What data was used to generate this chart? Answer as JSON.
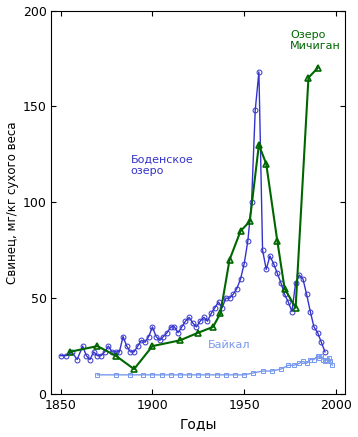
{
  "xlabel": "Годы",
  "ylabel": "Свинец, мг/кг сухого веса",
  "xlim": [
    1845,
    2005
  ],
  "ylim": [
    0,
    200
  ],
  "xticks": [
    1850,
    1900,
    1950,
    2000
  ],
  "yticks": [
    0,
    50,
    100,
    150,
    200
  ],
  "michigan_color": "#3333cc",
  "boden_color": "#006600",
  "baikal_color": "#7799ee",
  "label_color_blue": "#3333cc",
  "michigan_label": "Озеро\nМичиган",
  "boden_label": "Боденское\nозеро",
  "baikal_label": "Байкал",
  "michigan_x": [
    1850,
    1853,
    1856,
    1859,
    1862,
    1864,
    1866,
    1868,
    1870,
    1872,
    1874,
    1876,
    1878,
    1880,
    1882,
    1884,
    1886,
    1888,
    1890,
    1892,
    1894,
    1896,
    1898,
    1900,
    1902,
    1904,
    1906,
    1908,
    1910,
    1912,
    1914,
    1916,
    1918,
    1920,
    1922,
    1924,
    1926,
    1928,
    1930,
    1932,
    1934,
    1936,
    1938,
    1940,
    1942,
    1944,
    1946,
    1948,
    1950,
    1952,
    1954,
    1956,
    1958,
    1960,
    1962,
    1964,
    1966,
    1968,
    1970,
    1972,
    1974,
    1976,
    1978,
    1980,
    1982,
    1984,
    1986,
    1988,
    1990,
    1992,
    1994
  ],
  "michigan_y": [
    20,
    20,
    22,
    18,
    25,
    20,
    18,
    22,
    20,
    20,
    22,
    25,
    22,
    22,
    22,
    30,
    25,
    22,
    22,
    25,
    28,
    27,
    30,
    35,
    30,
    28,
    30,
    32,
    35,
    35,
    32,
    35,
    38,
    40,
    37,
    35,
    38,
    40,
    38,
    42,
    45,
    48,
    45,
    50,
    50,
    52,
    55,
    60,
    68,
    80,
    100,
    148,
    168,
    75,
    65,
    72,
    68,
    63,
    58,
    52,
    48,
    43,
    58,
    62,
    60,
    52,
    43,
    35,
    32,
    27,
    22
  ],
  "boden_x": [
    1855,
    1870,
    1880,
    1890,
    1900,
    1915,
    1925,
    1933,
    1937,
    1942,
    1948,
    1953,
    1958,
    1962,
    1968,
    1972,
    1978,
    1985,
    1990
  ],
  "boden_y": [
    22,
    25,
    20,
    13,
    25,
    28,
    32,
    35,
    42,
    70,
    85,
    90,
    130,
    120,
    80,
    55,
    45,
    165,
    170
  ],
  "baikal_x": [
    1870,
    1880,
    1888,
    1895,
    1900,
    1905,
    1910,
    1915,
    1920,
    1925,
    1930,
    1935,
    1940,
    1945,
    1950,
    1955,
    1960,
    1965,
    1970,
    1974,
    1977,
    1980,
    1982,
    1984,
    1986,
    1988,
    1990,
    1991,
    1992,
    1993,
    1994,
    1995,
    1996,
    1997,
    1998
  ],
  "baikal_y": [
    10,
    10,
    10,
    10,
    10,
    10,
    10,
    10,
    10,
    10,
    10,
    10,
    10,
    10,
    10,
    11,
    12,
    12,
    13,
    15,
    15,
    16,
    17,
    16,
    18,
    18,
    20,
    19,
    20,
    18,
    17,
    18,
    19,
    17,
    15
  ]
}
